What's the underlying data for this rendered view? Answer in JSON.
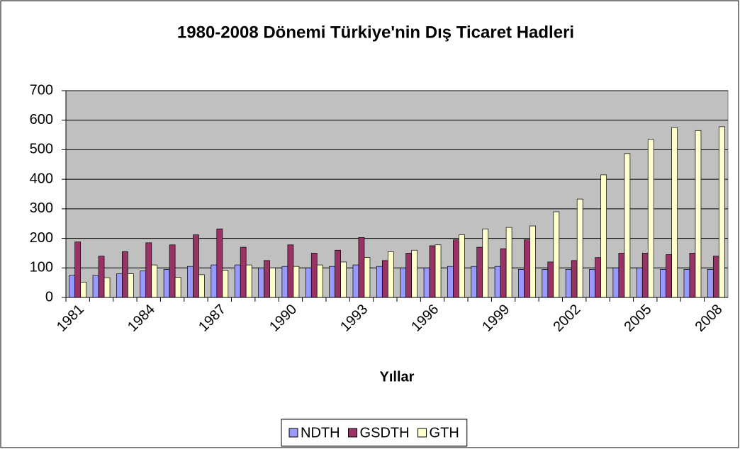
{
  "chart_data": {
    "type": "bar",
    "title": "1980-2008 Dönemi Türkiye'nin Dış Ticaret Hadleri",
    "x_label": "Yıllar",
    "categories": [
      "1981",
      null,
      null,
      "1984",
      null,
      null,
      "1987",
      null,
      null,
      "1990",
      null,
      null,
      "1993",
      null,
      null,
      "1996",
      null,
      null,
      "1999",
      null,
      null,
      "2002",
      null,
      null,
      "2005",
      null,
      null,
      "2008"
    ],
    "series": [
      {
        "name": "NDTH",
        "color": "#9999ff",
        "values": [
          75,
          75,
          80,
          90,
          95,
          105,
          110,
          110,
          100,
          105,
          100,
          105,
          110,
          105,
          100,
          100,
          105,
          105,
          105,
          95,
          95,
          95,
          95,
          100,
          100,
          95,
          95,
          95
        ]
      },
      {
        "name": "GSDTH",
        "color": "#993366",
        "values": [
          188,
          140,
          155,
          185,
          178,
          212,
          232,
          170,
          125,
          178,
          150,
          160,
          203,
          125,
          150,
          175,
          195,
          170,
          165,
          195,
          120,
          125,
          135,
          150,
          150,
          145,
          150,
          140
        ]
      },
      {
        "name": "GTH",
        "color": "#ffffcc",
        "values": [
          52,
          67,
          80,
          110,
          68,
          77,
          92,
          110,
          100,
          105,
          110,
          120,
          135,
          155,
          160,
          178,
          212,
          232,
          237,
          242,
          290,
          333,
          415,
          487,
          535,
          575,
          565,
          578
        ]
      }
    ],
    "ylim": [
      0,
      700
    ],
    "yticks": [
      0,
      100,
      200,
      300,
      400,
      500,
      600,
      700
    ],
    "grid": true,
    "legend": "bottom"
  }
}
